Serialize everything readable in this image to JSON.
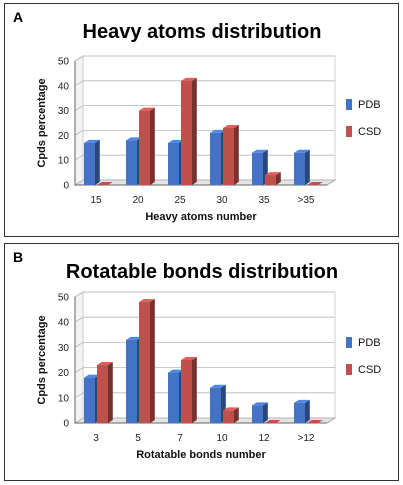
{
  "colors": {
    "PDB": "#4472C4",
    "CSD": "#C0504D"
  },
  "chart_data": [
    {
      "type": "bar",
      "panel": "A",
      "title": "Heavy atoms distribution",
      "xlabel": "Heavy atoms number",
      "ylabel": "Cpds percentage",
      "categories": [
        "15",
        "20",
        "25",
        "30",
        "35",
        ">35"
      ],
      "series": [
        {
          "name": "PDB",
          "values": [
            17,
            18,
            17,
            21,
            13,
            13
          ]
        },
        {
          "name": "CSD",
          "values": [
            0,
            30,
            42,
            23,
            4,
            0
          ]
        }
      ],
      "ylim": [
        0,
        50
      ],
      "yticks": [
        "0",
        "10",
        "20",
        "30",
        "40",
        "50"
      ],
      "grid": true,
      "legend": "right"
    },
    {
      "type": "bar",
      "panel": "B",
      "title": "Rotatable bonds distribution",
      "xlabel": "Rotatable bonds number",
      "ylabel": "Cpds percentage",
      "categories": [
        "3",
        "5",
        "7",
        "10",
        "12",
        ">12"
      ],
      "series": [
        {
          "name": "PDB",
          "values": [
            18,
            33,
            20,
            14,
            7,
            8
          ]
        },
        {
          "name": "CSD",
          "values": [
            23,
            48,
            25,
            5,
            0,
            0
          ]
        }
      ],
      "ylim": [
        0,
        50
      ],
      "yticks": [
        "0",
        "10",
        "20",
        "30",
        "40",
        "50"
      ],
      "grid": true,
      "legend": "right"
    }
  ]
}
